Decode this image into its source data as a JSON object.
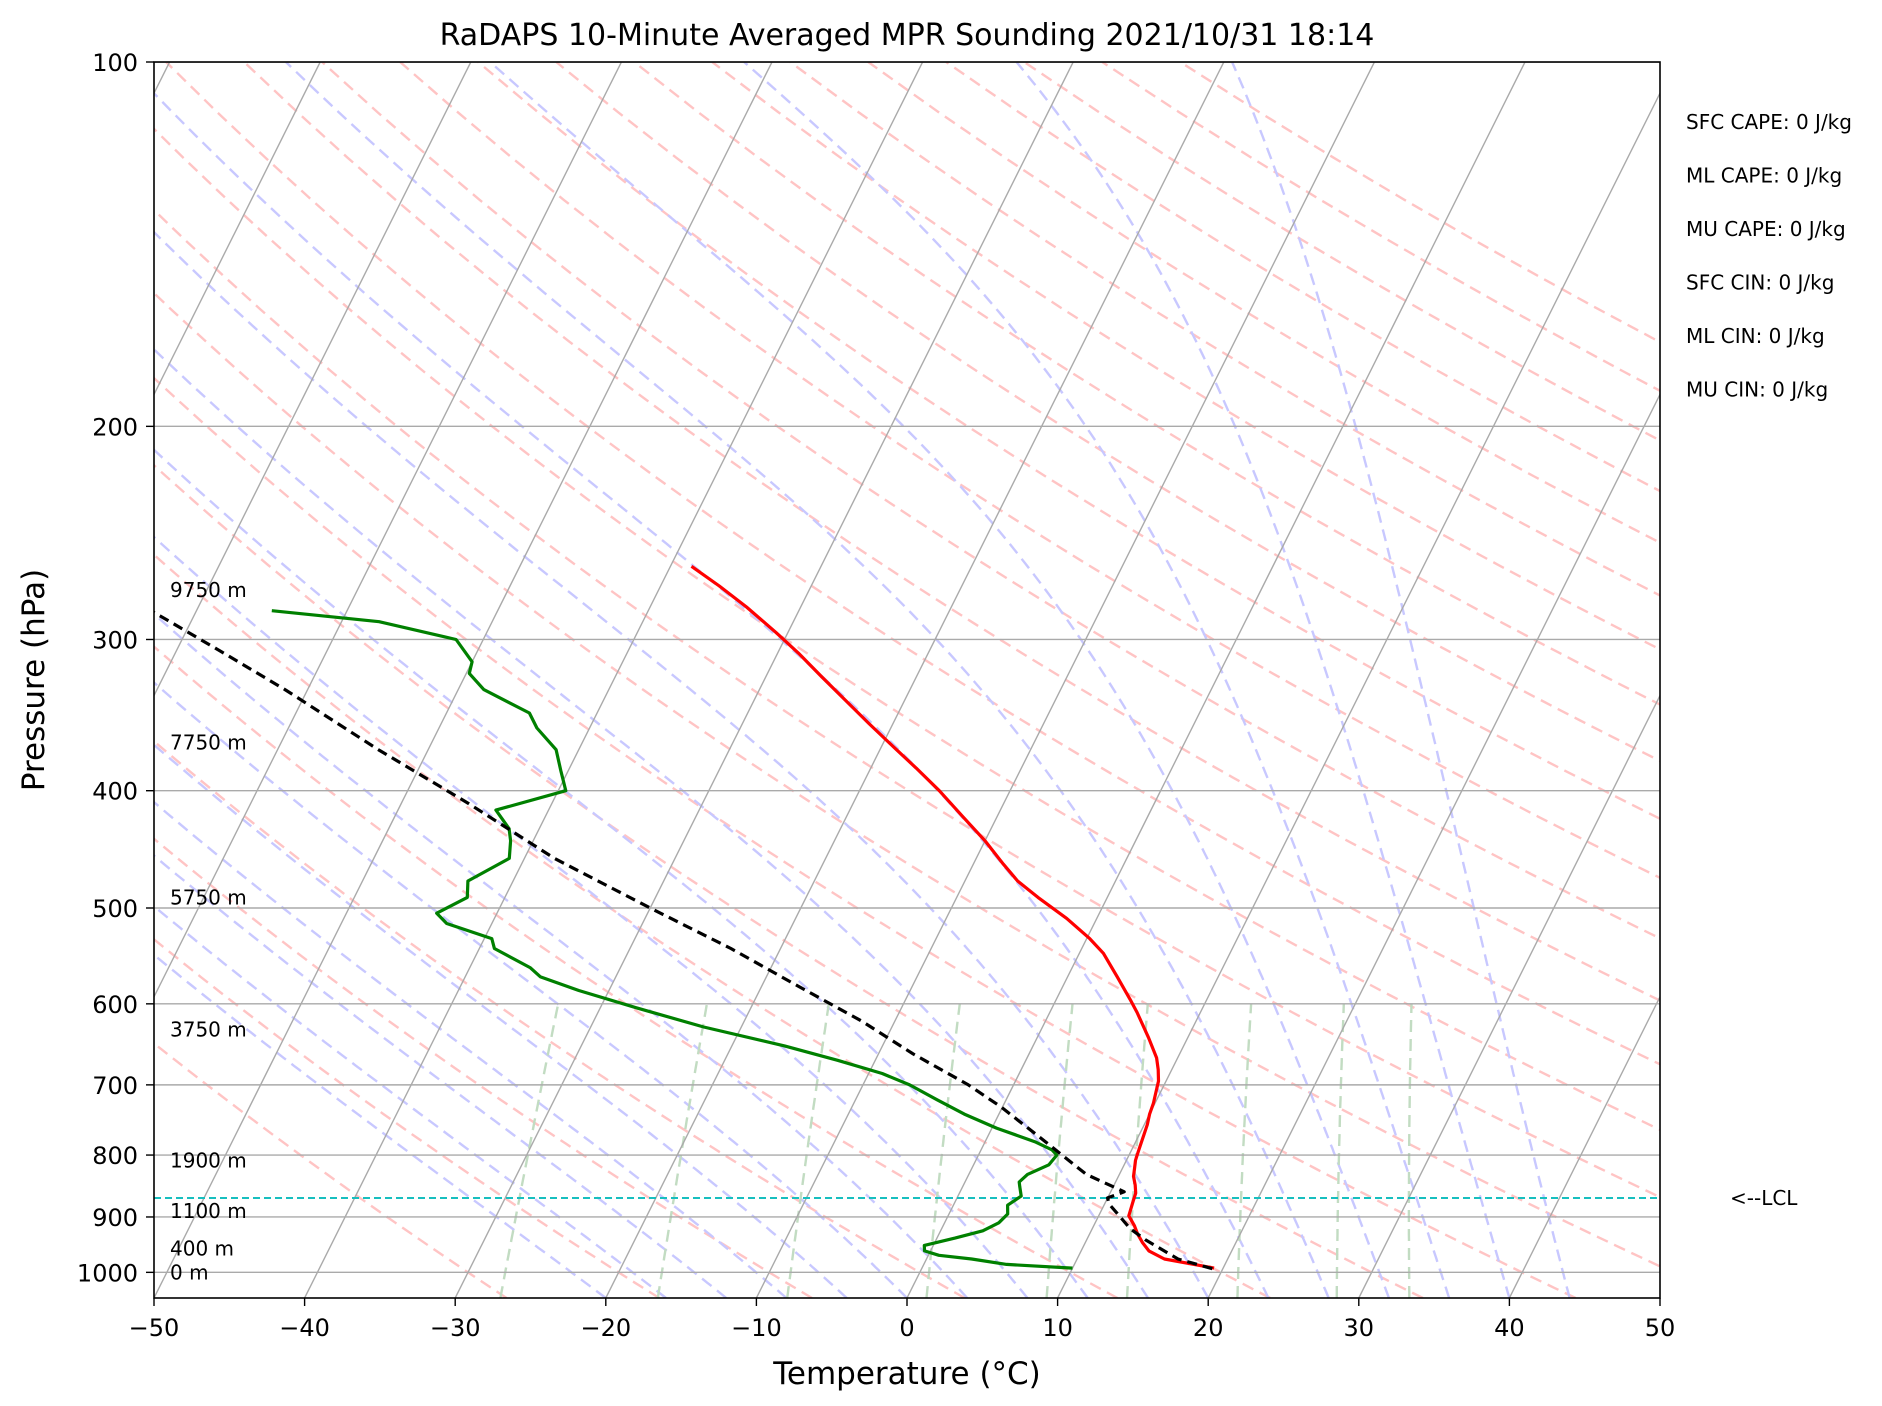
{
  "chart_data": {
    "type": "line",
    "subtype": "skew-T log-P sounding",
    "title": "RaDAPS 10-Minute Averaged MPR Sounding 2021/10/31 18:14",
    "xlabel": "Temperature (°C)",
    "ylabel": "Pressure (hPa)",
    "xlim": [
      -50,
      50
    ],
    "ylim": [
      1050,
      100
    ],
    "y_scale": "log",
    "grid": true,
    "x_ticks": [
      {
        "value": -50,
        "label": "−50"
      },
      {
        "value": -40,
        "label": "−40"
      },
      {
        "value": -30,
        "label": "−30"
      },
      {
        "value": -20,
        "label": "−20"
      },
      {
        "value": -10,
        "label": "−10"
      },
      {
        "value": 0,
        "label": "0"
      },
      {
        "value": 10,
        "label": "10"
      },
      {
        "value": 20,
        "label": "20"
      },
      {
        "value": 30,
        "label": "30"
      },
      {
        "value": 40,
        "label": "40"
      },
      {
        "value": 50,
        "label": "50"
      }
    ],
    "y_ticks": [
      {
        "value": 100,
        "label": "100"
      },
      {
        "value": 200,
        "label": "200"
      },
      {
        "value": 300,
        "label": "300"
      },
      {
        "value": 400,
        "label": "400"
      },
      {
        "value": 500,
        "label": "500"
      },
      {
        "value": 600,
        "label": "600"
      },
      {
        "value": 700,
        "label": "700"
      },
      {
        "value": 800,
        "label": "800"
      },
      {
        "value": 900,
        "label": "900"
      },
      {
        "value": 1000,
        "label": "1000"
      }
    ],
    "series": [
      {
        "color": "#ff0000",
        "points": [
          [
            19.4,
            992
          ],
          [
            15.8,
            975
          ],
          [
            14.5,
            960
          ],
          [
            13.8,
            945
          ],
          [
            13.2,
            930
          ],
          [
            12.7,
            915
          ],
          [
            12.0,
            898
          ],
          [
            11.9,
            885
          ],
          [
            11.8,
            873
          ],
          [
            11.7,
            860
          ],
          [
            11.4,
            847
          ],
          [
            11.0,
            833
          ],
          [
            10.8,
            820
          ],
          [
            10.6,
            808
          ],
          [
            10.5,
            795
          ],
          [
            10.4,
            782
          ],
          [
            10.3,
            768
          ],
          [
            10.2,
            755
          ],
          [
            10.0,
            740
          ],
          [
            9.9,
            725
          ],
          [
            9.7,
            710
          ],
          [
            9.5,
            695
          ],
          [
            9.1,
            680
          ],
          [
            8.6,
            665
          ],
          [
            7.4,
            640
          ],
          [
            5.8,
            610
          ],
          [
            4.9,
            595
          ],
          [
            3.3,
            570
          ],
          [
            1.6,
            545
          ],
          [
            0.2,
            530
          ],
          [
            -2.0,
            510
          ],
          [
            -4.6,
            490
          ],
          [
            -6.5,
            475
          ],
          [
            -8.0,
            460
          ],
          [
            -10.0,
            440
          ],
          [
            -12.3,
            420
          ],
          [
            -14.7,
            400
          ],
          [
            -17.0,
            383
          ],
          [
            -18.9,
            370
          ],
          [
            -21.6,
            352
          ],
          [
            -23.9,
            337
          ],
          [
            -26.3,
            322
          ],
          [
            -28.6,
            308
          ],
          [
            -30.8,
            296
          ],
          [
            -33.6,
            282
          ],
          [
            -36.1,
            271
          ],
          [
            -38.6,
            261
          ]
        ]
      },
      {
        "color": "#008000",
        "points": [
          [
            10.0,
            992
          ],
          [
            5.5,
            985
          ],
          [
            3.0,
            975
          ],
          [
            0.7,
            968
          ],
          [
            -0.4,
            960
          ],
          [
            -0.6,
            950
          ],
          [
            1.2,
            937
          ],
          [
            2.8,
            924
          ],
          [
            3.6,
            910
          ],
          [
            3.9,
            895
          ],
          [
            3.6,
            880
          ],
          [
            4.2,
            865
          ],
          [
            3.8,
            850
          ],
          [
            3.6,
            842
          ],
          [
            3.9,
            830
          ],
          [
            5.0,
            815
          ],
          [
            5.2,
            800
          ],
          [
            4.7,
            792
          ],
          [
            3.3,
            780
          ],
          [
            0.3,
            760
          ],
          [
            -2.3,
            740
          ],
          [
            -4.6,
            720
          ],
          [
            -6.9,
            700
          ],
          [
            -9.1,
            685
          ],
          [
            -12.5,
            668
          ],
          [
            -16.5,
            650
          ],
          [
            -22.5,
            627
          ],
          [
            -27.5,
            605
          ],
          [
            -32.0,
            585
          ],
          [
            -35.0,
            570
          ],
          [
            -36.0,
            560
          ],
          [
            -39.0,
            540
          ],
          [
            -39.5,
            530
          ],
          [
            -43.0,
            515
          ],
          [
            -44.0,
            505
          ],
          [
            -42.5,
            490
          ],
          [
            -43.0,
            475
          ],
          [
            -41.0,
            455
          ],
          [
            -41.5,
            440
          ],
          [
            -42.0,
            430
          ],
          [
            -43.5,
            415
          ],
          [
            -39.5,
            400
          ],
          [
            -40.5,
            385
          ],
          [
            -41.5,
            370
          ],
          [
            -43.5,
            355
          ],
          [
            -44.5,
            345
          ],
          [
            -48.3,
            330
          ],
          [
            -49.8,
            320
          ],
          [
            -50.0,
            313
          ],
          [
            -51.8,
            300
          ],
          [
            -57.5,
            290
          ],
          [
            -65.0,
            284
          ]
        ]
      },
      {
        "color": "#000000",
        "dashed": true,
        "points": [
          [
            19.3,
            993
          ],
          [
            16.7,
            975
          ],
          [
            13.9,
            940
          ],
          [
            12.5,
            920
          ],
          [
            11.2,
            895
          ],
          [
            10.3,
            878
          ],
          [
            10.0,
            868
          ],
          [
            10.9,
            858
          ],
          [
            7.8,
            830
          ],
          [
            4.0,
            780
          ],
          [
            -0.1,
            730
          ],
          [
            -3.0,
            700
          ],
          [
            -7.7,
            660
          ],
          [
            -12.2,
            620
          ],
          [
            -17.6,
            580
          ],
          [
            -23.3,
            540
          ],
          [
            -30.0,
            500
          ],
          [
            -38.0,
            455
          ],
          [
            -45.5,
            410
          ],
          [
            -53.3,
            370
          ],
          [
            -61.5,
            330
          ],
          [
            -67.0,
            307
          ],
          [
            -72.2,
            287
          ],
          [
            -77.3,
            269
          ]
        ]
      }
    ],
    "lcl": {
      "pressure": 868,
      "label": "<--LCL"
    },
    "height_labels": [
      {
        "pressure": 1000,
        "label": "0 m"
      },
      {
        "pressure": 956,
        "label": "400 m"
      },
      {
        "pressure": 890,
        "label": "1100 m"
      },
      {
        "pressure": 808,
        "label": "1900 m"
      },
      {
        "pressure": 630,
        "label": "3750 m"
      },
      {
        "pressure": 490,
        "label": "5750 m"
      },
      {
        "pressure": 365,
        "label": "7750 m"
      },
      {
        "pressure": 273,
        "label": "9750 m"
      }
    ],
    "indices": [
      "SFC CAPE: 0 J/kg",
      "ML CAPE: 0 J/kg",
      "MU CAPE: 0 J/kg",
      "SFC CIN: 0 J/kg",
      "ML CIN: 0 J/kg",
      "MU CIN: 0 J/kg"
    ],
    "colors": {
      "isotherm": "#aaaaaa",
      "dry_adiabat": "#ffc4c4",
      "moist_adiabat": "#c8c8ff",
      "mixing_ratio": "#c2dcc2",
      "lcl_line": "#17bfbf"
    }
  }
}
